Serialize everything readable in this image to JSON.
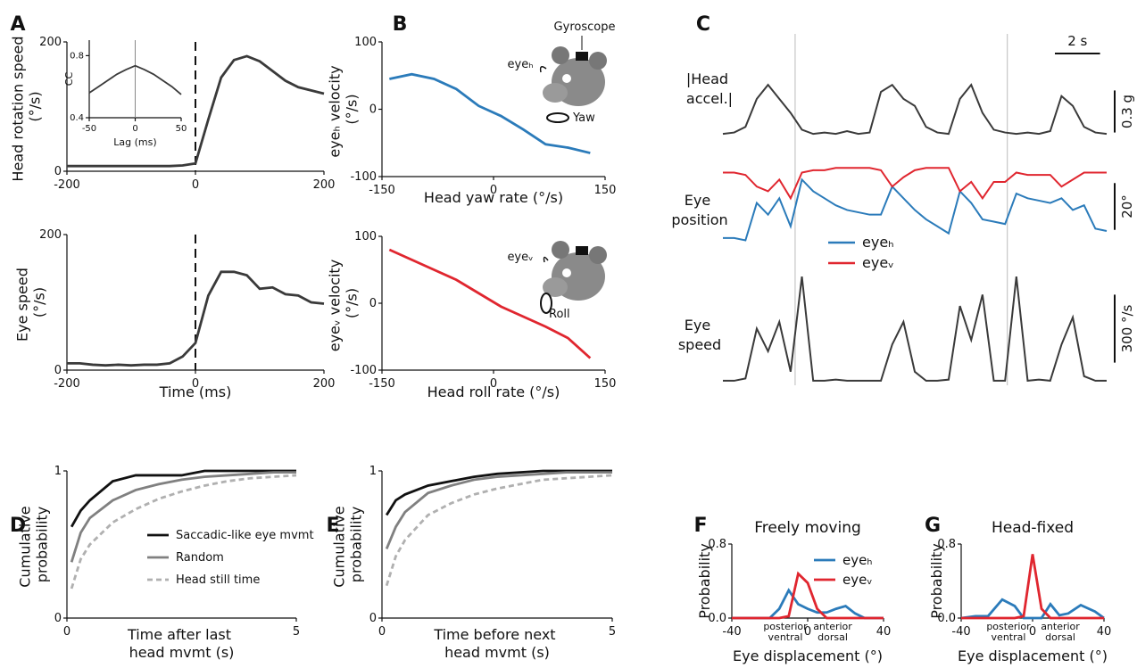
{
  "chart_data": [
    {
      "type": "line",
      "panel": "A",
      "ylabel": "Head rotation speed (°/s)",
      "x": [
        -200,
        -180,
        -160,
        -140,
        -120,
        -100,
        -80,
        -60,
        -40,
        -20,
        0,
        20,
        40,
        60,
        80,
        100,
        120,
        140,
        160,
        180,
        200
      ],
      "values": [
        8,
        8,
        8,
        8,
        8,
        8,
        8,
        8,
        8,
        9,
        12,
        80,
        145,
        172,
        178,
        170,
        155,
        140,
        130,
        125,
        120
      ],
      "color": "#3a3a3a",
      "xlim": [
        -200,
        200
      ],
      "xticks": [
        -200,
        0,
        200
      ],
      "ylim": [
        0,
        200
      ],
      "yticks": [
        0,
        200
      ],
      "vline": 0
    },
    {
      "type": "line",
      "xlabel": "Lag (ms)",
      "ylabel": "CC",
      "x": [
        -50,
        -40,
        -30,
        -20,
        -10,
        0,
        10,
        20,
        30,
        40,
        50
      ],
      "values": [
        0.56,
        0.6,
        0.64,
        0.68,
        0.71,
        0.735,
        0.71,
        0.68,
        0.64,
        0.6,
        0.55
      ],
      "color": "#3a3a3a",
      "xlim": [
        -50,
        50
      ],
      "xticks": [
        -50,
        0,
        50
      ],
      "ylim": [
        0.4,
        0.9
      ],
      "yticks": [
        0.4,
        0.8
      ],
      "vline": 0
    },
    {
      "type": "line",
      "ylabel": "Eye speed (°/s)",
      "xlabel": "Time (ms)",
      "x": [
        -200,
        -180,
        -160,
        -140,
        -120,
        -100,
        -80,
        -60,
        -40,
        -20,
        0,
        20,
        40,
        60,
        80,
        100,
        120,
        140,
        160,
        180,
        200
      ],
      "values": [
        10,
        10,
        8,
        7,
        8,
        7,
        8,
        8,
        10,
        20,
        40,
        110,
        145,
        145,
        140,
        120,
        122,
        112,
        110,
        100,
        98
      ],
      "color": "#3a3a3a",
      "xlim": [
        -200,
        200
      ],
      "xticks": [
        -200,
        0,
        200
      ],
      "ylim": [
        0,
        200
      ],
      "yticks": [
        0,
        200
      ],
      "vline": 0
    },
    {
      "type": "line",
      "panel": "B",
      "ylabel": "eyeₕ velocity (°/s)",
      "xlabel": "Head yaw rate (°/s)",
      "x": [
        -140,
        -110,
        -80,
        -50,
        -20,
        10,
        40,
        70,
        100,
        130
      ],
      "values": [
        45,
        52,
        45,
        30,
        5,
        -10,
        -30,
        -52,
        -57,
        -65
      ],
      "color": "#2b7bba",
      "xlim": [
        -150,
        150
      ],
      "xticks": [
        -150,
        0,
        150
      ],
      "ylim": [
        -100,
        100
      ],
      "yticks": [
        -100,
        0,
        100
      ],
      "annotations": [
        {
          "text": "Gyroscope"
        },
        {
          "text": "eyeₕ"
        },
        {
          "text": "Yaw"
        }
      ]
    },
    {
      "type": "line",
      "ylabel": "eyeᵥ velocity (°/s)",
      "xlabel": "Head roll rate (°/s)",
      "x": [
        -140,
        -110,
        -80,
        -50,
        -20,
        10,
        40,
        70,
        100,
        130
      ],
      "values": [
        80,
        65,
        50,
        35,
        15,
        -5,
        -20,
        -35,
        -52,
        -82
      ],
      "color": "#e0262f",
      "xlim": [
        -150,
        150
      ],
      "xticks": [
        -150,
        0,
        150
      ],
      "ylim": [
        -100,
        100
      ],
      "yticks": [
        -100,
        0,
        100
      ],
      "annotations": [
        {
          "text": "eyeᵥ"
        },
        {
          "text": "Roll"
        }
      ]
    },
    {
      "type": "traces",
      "panel": "C",
      "x": [
        0,
        0.5,
        1,
        1.5,
        2,
        2.5,
        3,
        3.5,
        4,
        4.5,
        5,
        5.5,
        6,
        6.5,
        7,
        7.5,
        8,
        8.5,
        9,
        9.5,
        10,
        10.5,
        11,
        11.5,
        12,
        12.5,
        13,
        13.5,
        14,
        14.5,
        15,
        15.5,
        16,
        16.5,
        17
      ],
      "xlim": [
        0,
        17
      ],
      "event_lines": [
        3.2,
        12.6
      ],
      "time_scalebar": {
        "value": 2,
        "label": "2 s"
      },
      "rows": [
        {
          "label": "|Head accel.|",
          "ylim": [
            0,
            0.42
          ],
          "scalebar": {
            "value": 0.3,
            "label": "0.3 g"
          },
          "series": [
            {
              "color": "#3a3a3a",
              "values": [
                0.05,
                0.06,
                0.1,
                0.3,
                0.4,
                0.3,
                0.2,
                0.08,
                0.05,
                0.06,
                0.05,
                0.07,
                0.05,
                0.06,
                0.35,
                0.4,
                0.3,
                0.25,
                0.1,
                0.06,
                0.05,
                0.3,
                0.4,
                0.2,
                0.08,
                0.06,
                0.05,
                0.06,
                0.05,
                0.07,
                0.32,
                0.25,
                0.1,
                0.06,
                0.05
              ]
            }
          ]
        },
        {
          "label": "Eye position",
          "ylim": [
            -25,
            12
          ],
          "scalebar": {
            "value": 20,
            "label": "20°"
          },
          "series": [
            {
              "name": "eyeₕ",
              "color": "#2b7bba",
              "values": [
                -20,
                -20,
                -21,
                -5,
                -10,
                -3,
                -15,
                5,
                0,
                -3,
                -6,
                -8,
                -9,
                -10,
                -10,
                2,
                -3,
                -8,
                -12,
                -15,
                -18,
                0,
                -5,
                -12,
                -13,
                -14,
                -1,
                -3,
                -4,
                -5,
                -3,
                -8,
                -6,
                -16,
                -17
              ]
            },
            {
              "name": "eyeᵥ",
              "color": "#e0262f",
              "values": [
                8,
                8,
                7,
                2,
                0,
                5,
                -3,
                8,
                9,
                9,
                10,
                10,
                10,
                10,
                9,
                2,
                6,
                9,
                10,
                10,
                10,
                0,
                4,
                -3,
                4,
                4,
                8,
                7,
                7,
                7,
                2,
                5,
                8,
                8,
                8
              ]
            }
          ]
        },
        {
          "label": "Eye speed",
          "ylim": [
            0,
            500
          ],
          "scalebar": {
            "value": 300,
            "label": "300 °/s"
          },
          "series": [
            {
              "color": "#3a3a3a",
              "values": [
                20,
                20,
                30,
                250,
                150,
                280,
                60,
                480,
                20,
                20,
                25,
                20,
                20,
                20,
                20,
                180,
                280,
                60,
                20,
                20,
                25,
                350,
                200,
                400,
                20,
                20,
                480,
                20,
                25,
                20,
                180,
                300,
                40,
                20,
                20
              ]
            }
          ]
        }
      ]
    },
    {
      "type": "line",
      "panel": "D",
      "ylabel": "Cumulative probability",
      "xlabel": "Time after last head mvmt (s)",
      "x": [
        0.1,
        0.3,
        0.5,
        1,
        1.5,
        2,
        2.5,
        3,
        3.5,
        4,
        4.5,
        5
      ],
      "series": [
        {
          "name": "Saccadic-like eye mvmt",
          "color": "#111111",
          "values": [
            0.62,
            0.73,
            0.8,
            0.93,
            0.97,
            0.97,
            0.97,
            1,
            1,
            1,
            1,
            1
          ]
        },
        {
          "name": "Random",
          "color": "#808080",
          "values": [
            0.38,
            0.58,
            0.68,
            0.8,
            0.87,
            0.91,
            0.94,
            0.96,
            0.97,
            0.98,
            0.99,
            0.99
          ]
        },
        {
          "name": "Head still time",
          "color": "#b0b0b0",
          "dash": true,
          "values": [
            0.2,
            0.4,
            0.5,
            0.65,
            0.74,
            0.81,
            0.86,
            0.9,
            0.93,
            0.95,
            0.96,
            0.97
          ]
        }
      ],
      "xlim": [
        0,
        5
      ],
      "xticks": [
        0,
        5
      ],
      "ylim": [
        0,
        1
      ],
      "yticks": [
        0,
        1
      ],
      "legend": true
    },
    {
      "type": "line",
      "panel": "E",
      "ylabel": "Cumulative probability",
      "xlabel": "Time before next head mvmt (s)",
      "x": [
        0.1,
        0.3,
        0.5,
        1,
        1.5,
        2,
        2.5,
        3,
        3.5,
        4,
        4.5,
        5
      ],
      "series": [
        {
          "color": "#111111",
          "values": [
            0.7,
            0.8,
            0.84,
            0.9,
            0.93,
            0.96,
            0.98,
            0.99,
            1,
            1,
            1,
            1
          ]
        },
        {
          "color": "#808080",
          "values": [
            0.47,
            0.62,
            0.72,
            0.85,
            0.9,
            0.94,
            0.96,
            0.97,
            0.98,
            0.99,
            0.99,
            0.99
          ]
        },
        {
          "color": "#b0b0b0",
          "dash": true,
          "values": [
            0.22,
            0.42,
            0.53,
            0.7,
            0.78,
            0.84,
            0.88,
            0.91,
            0.94,
            0.95,
            0.96,
            0.97
          ]
        }
      ],
      "xlim": [
        0,
        5
      ],
      "xticks": [
        0,
        5
      ],
      "ylim": [
        0,
        1
      ],
      "yticks": [
        0,
        1
      ]
    },
    {
      "type": "line",
      "panel": "F",
      "title": "Freely moving",
      "ylabel": "Probability",
      "xlabel": "Eye displacement (°)",
      "x": [
        -40,
        -30,
        -20,
        -15,
        -10,
        -5,
        0,
        5,
        10,
        15,
        20,
        25,
        30,
        40
      ],
      "series": [
        {
          "name": "eyeₕ",
          "color": "#2b7bba",
          "values": [
            0,
            0,
            0,
            0.1,
            0.3,
            0.15,
            0.1,
            0.06,
            0.06,
            0.1,
            0.13,
            0.05,
            0,
            0
          ]
        },
        {
          "name": "eyeᵥ",
          "color": "#e0262f",
          "values": [
            0,
            0,
            0,
            0,
            0.02,
            0.48,
            0.38,
            0.1,
            0,
            0,
            0,
            0,
            0,
            0
          ]
        }
      ],
      "xlim": [
        -40,
        40
      ],
      "xticks": [
        -40,
        0,
        40
      ],
      "ylim": [
        0,
        0.8
      ],
      "yticks": [
        {
          "value": 0,
          "label": "0.0"
        },
        0.8
      ],
      "legend": true,
      "annotations": [
        {
          "text": "posterior",
          "color": "#2b7bba"
        },
        {
          "text": "ventral",
          "color": "#e0262f"
        },
        {
          "text": "anterior",
          "color": "#2b7bba"
        },
        {
          "text": "dorsal",
          "color": "#e0262f"
        }
      ]
    },
    {
      "type": "line",
      "panel": "G",
      "title": "Head-fixed",
      "ylabel": "Probability",
      "xlabel": "Eye displacement (°)",
      "x": [
        -40,
        -32,
        -25,
        -17,
        -10,
        -5,
        0,
        5,
        10,
        15,
        20,
        27,
        35,
        40
      ],
      "series": [
        {
          "color": "#2b7bba",
          "values": [
            0,
            0.02,
            0.02,
            0.2,
            0.13,
            0,
            0,
            0,
            0.15,
            0.03,
            0.05,
            0.14,
            0.07,
            0
          ]
        },
        {
          "color": "#e0262f",
          "values": [
            0,
            0,
            0,
            0,
            0,
            0.02,
            0.69,
            0.1,
            0,
            0,
            0,
            0,
            0,
            0
          ]
        }
      ],
      "xlim": [
        -40,
        40
      ],
      "xticks": [
        -40,
        0,
        40
      ],
      "ylim": [
        0,
        0.8
      ],
      "yticks": [
        {
          "value": 0,
          "label": "0.0"
        },
        0.8
      ],
      "annotations": [
        {
          "text": "posterior",
          "color": "#2b7bba"
        },
        {
          "text": "ventral",
          "color": "#e0262f"
        },
        {
          "text": "anterior",
          "color": "#2b7bba"
        },
        {
          "text": "dorsal",
          "color": "#e0262f"
        }
      ]
    }
  ]
}
